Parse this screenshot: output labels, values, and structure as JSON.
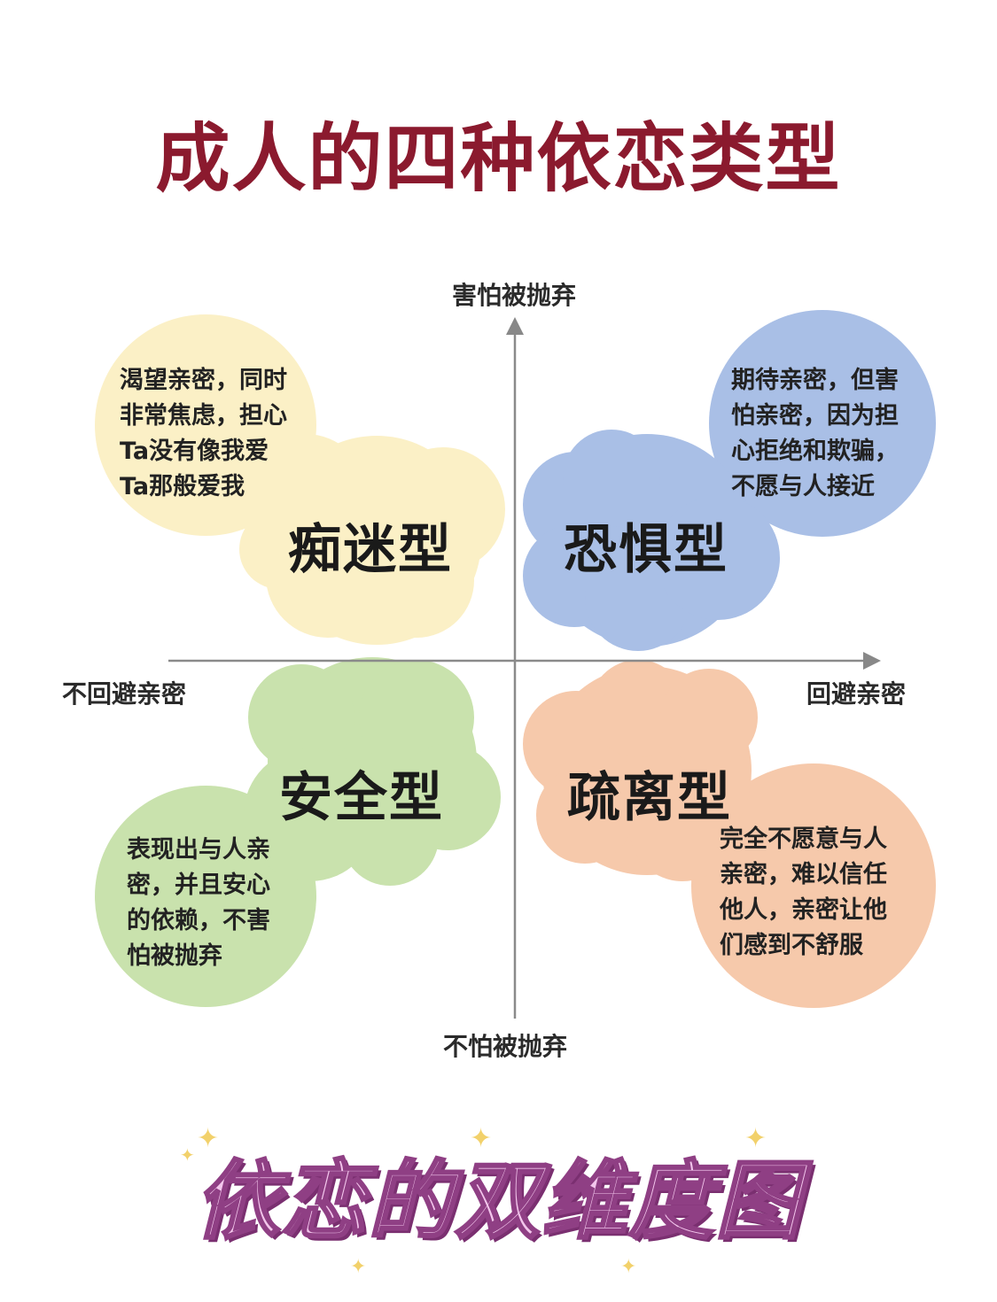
{
  "title": "成人的四种依恋类型",
  "axes": {
    "top": "害怕被抛弃",
    "bottom": "不怕被抛弃",
    "left": "不回避亲密",
    "right": "回避亲密"
  },
  "quadrants": {
    "top_left": {
      "name": "痴迷型",
      "lines": [
        "渴望亲密，同时",
        "非常焦虑，担心",
        "Ta没有像我爱",
        "Ta那般爱我"
      ],
      "color": "#fbf0c6"
    },
    "top_right": {
      "name": "恐惧型",
      "lines": [
        "期待亲密，但害",
        "怕亲密，因为担",
        "心拒绝和欺骗，",
        "不愿与人接近"
      ],
      "color": "#a9bfe6"
    },
    "bottom_left": {
      "name": "安全型",
      "lines": [
        "表现出与人亲",
        "密，并且安心",
        "的依赖，不害",
        "怕被抛弃"
      ],
      "color": "#c9e2ad"
    },
    "bottom_right": {
      "name": "疏离型",
      "lines": [
        "完全不愿意与人",
        "亲密，难以信任",
        "他人，亲密让他",
        "们感到不舒服"
      ],
      "color": "#f6c9ab"
    }
  },
  "footer": "依恋的双维度图"
}
